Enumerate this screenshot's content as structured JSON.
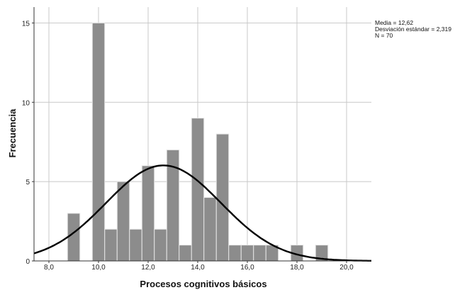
{
  "chart_data": {
    "type": "bar",
    "xlabel": "Procesos cognitivos básicos",
    "ylabel": "Frecuencia",
    "xlim": [
      7.4,
      21.0
    ],
    "ylim": [
      0,
      16
    ],
    "x_ticks": [
      "8,0",
      "10,0",
      "12,0",
      "14,0",
      "16,0",
      "18,0",
      "20,0"
    ],
    "x_tick_values": [
      8,
      10,
      12,
      14,
      16,
      18,
      20
    ],
    "y_ticks": [
      "0",
      "5",
      "10",
      "15"
    ],
    "y_tick_values": [
      0,
      5,
      10,
      15
    ],
    "grid": true,
    "bin_width": 0.5,
    "bins": [
      {
        "x": 9.0,
        "count": 3
      },
      {
        "x": 10.0,
        "count": 15
      },
      {
        "x": 10.5,
        "count": 2
      },
      {
        "x": 11.0,
        "count": 5
      },
      {
        "x": 11.5,
        "count": 2
      },
      {
        "x": 12.0,
        "count": 6
      },
      {
        "x": 12.5,
        "count": 2
      },
      {
        "x": 13.0,
        "count": 7
      },
      {
        "x": 13.5,
        "count": 1
      },
      {
        "x": 14.0,
        "count": 9
      },
      {
        "x": 14.5,
        "count": 4
      },
      {
        "x": 15.0,
        "count": 8
      },
      {
        "x": 15.5,
        "count": 1
      },
      {
        "x": 16.0,
        "count": 1
      },
      {
        "x": 16.5,
        "count": 1
      },
      {
        "x": 17.0,
        "count": 1
      },
      {
        "x": 18.0,
        "count": 1
      },
      {
        "x": 19.0,
        "count": 1
      }
    ],
    "normal_curve": {
      "mean": 12.62,
      "sd": 2.319,
      "n": 70
    },
    "stats_text": [
      "Media = 12,62",
      "Desviación estándar = 2,319",
      "N = 70"
    ],
    "colors": {
      "bar": "#8c8c8c",
      "bar_edge": "#e6e6e6",
      "curve": "#000000",
      "grid": "#c8c8c8"
    }
  }
}
